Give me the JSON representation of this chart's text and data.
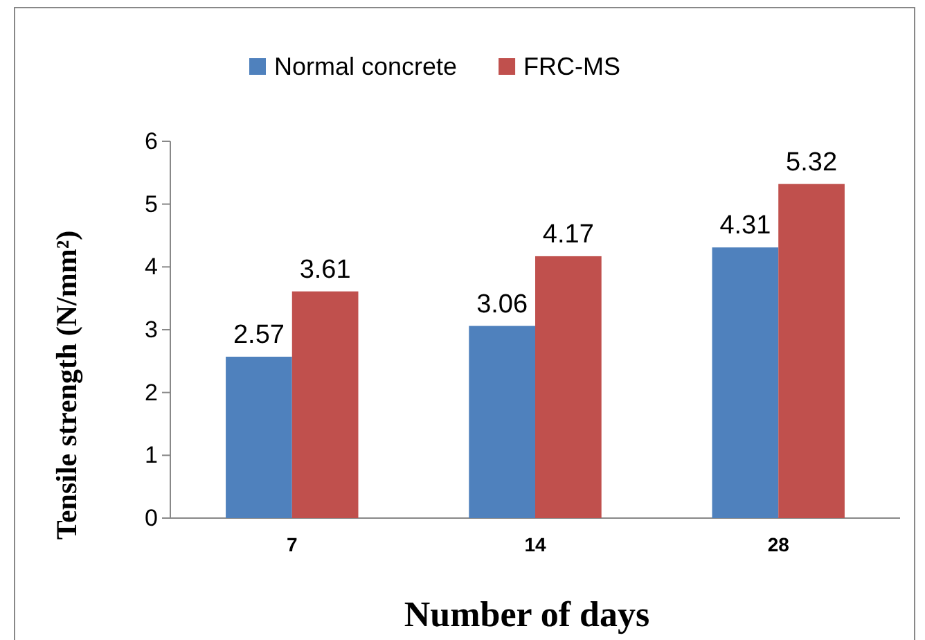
{
  "chart_data": {
    "type": "bar",
    "xlabel": "Number of days",
    "ylabel": "Tensile strength (N/mm²)",
    "categories": [
      "7",
      "14",
      "28"
    ],
    "series": [
      {
        "name": "Normal concrete",
        "color": "#4f81bd",
        "values": [
          2.57,
          3.06,
          4.31
        ]
      },
      {
        "name": "FRC-MS",
        "color": "#c0504d",
        "values": [
          3.61,
          4.17,
          5.32
        ]
      }
    ],
    "ylim": [
      0,
      6
    ],
    "yticks": [
      0,
      1,
      2,
      3,
      4,
      5,
      6
    ],
    "data_labels": true,
    "legend": "top",
    "grid": false
  }
}
